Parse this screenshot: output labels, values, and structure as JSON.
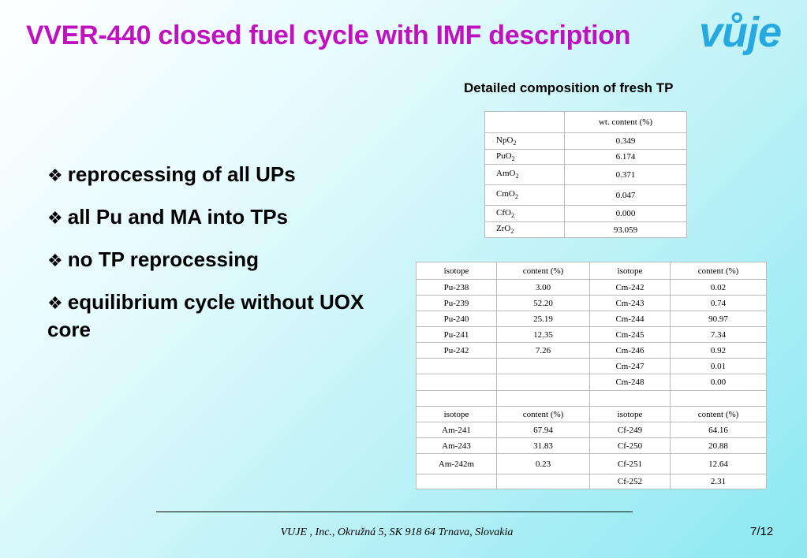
{
  "title": "VVER-440 closed fuel cycle with IMF description",
  "logo_text": "vůje",
  "subtitle": "Detailed composition of fresh TP",
  "bullets": [
    "reprocessing of all UPs",
    "all Pu and MA into TPs",
    "no TP reprocessing",
    "equilibrium cycle without UOX core"
  ],
  "composition_table": {
    "header": [
      "",
      "wt. content (%)"
    ],
    "rows": [
      {
        "el": "NpO",
        "sub": "2",
        "value": "0.349"
      },
      {
        "el": "PuO",
        "sub": "2",
        "value": "6.174"
      },
      {
        "el": "AmO",
        "sub": "2",
        "value": "0.371"
      },
      {
        "el": "CmO",
        "sub": "2",
        "value": "0.047"
      },
      {
        "el": "CfO",
        "sub": "2",
        "value": "0.000"
      },
      {
        "el": "ZrO",
        "sub": "2",
        "value": "93.059"
      }
    ]
  },
  "isotope_table": {
    "header1": [
      "isotope",
      "content (%)",
      "isotope",
      "content (%)"
    ],
    "block1": [
      [
        "Pu-238",
        "3.00",
        "Cm-242",
        "0.02"
      ],
      [
        "Pu-239",
        "52.20",
        "Cm-243",
        "0.74"
      ],
      [
        "Pu-240",
        "25.19",
        "Cm-244",
        "90.97"
      ],
      [
        "Pu-241",
        "12.35",
        "Cm-245",
        "7.34"
      ],
      [
        "Pu-242",
        "7.26",
        "Cm-246",
        "0.92"
      ],
      [
        "",
        "",
        "Cm-247",
        "0.01"
      ],
      [
        "",
        "",
        "Cm-248",
        "0.00"
      ],
      [
        "",
        "",
        "",
        ""
      ]
    ],
    "header2": [
      "isotope",
      "content (%)",
      "isotope",
      "content (%)"
    ],
    "block2": [
      [
        "Am-241",
        "67.94",
        "Cf-249",
        "64.16"
      ],
      [
        "Am-243",
        "31.83",
        "Cf-250",
        "20.88"
      ],
      [
        "Am-242m",
        "0.23",
        "Cf-251",
        "12.64"
      ],
      [
        "",
        "",
        "Cf-252",
        "2.31"
      ]
    ]
  },
  "footer": "VUJE , Inc., Okružná 5, SK 918 64 Trnava, Slovakia",
  "page_number": "7/12"
}
